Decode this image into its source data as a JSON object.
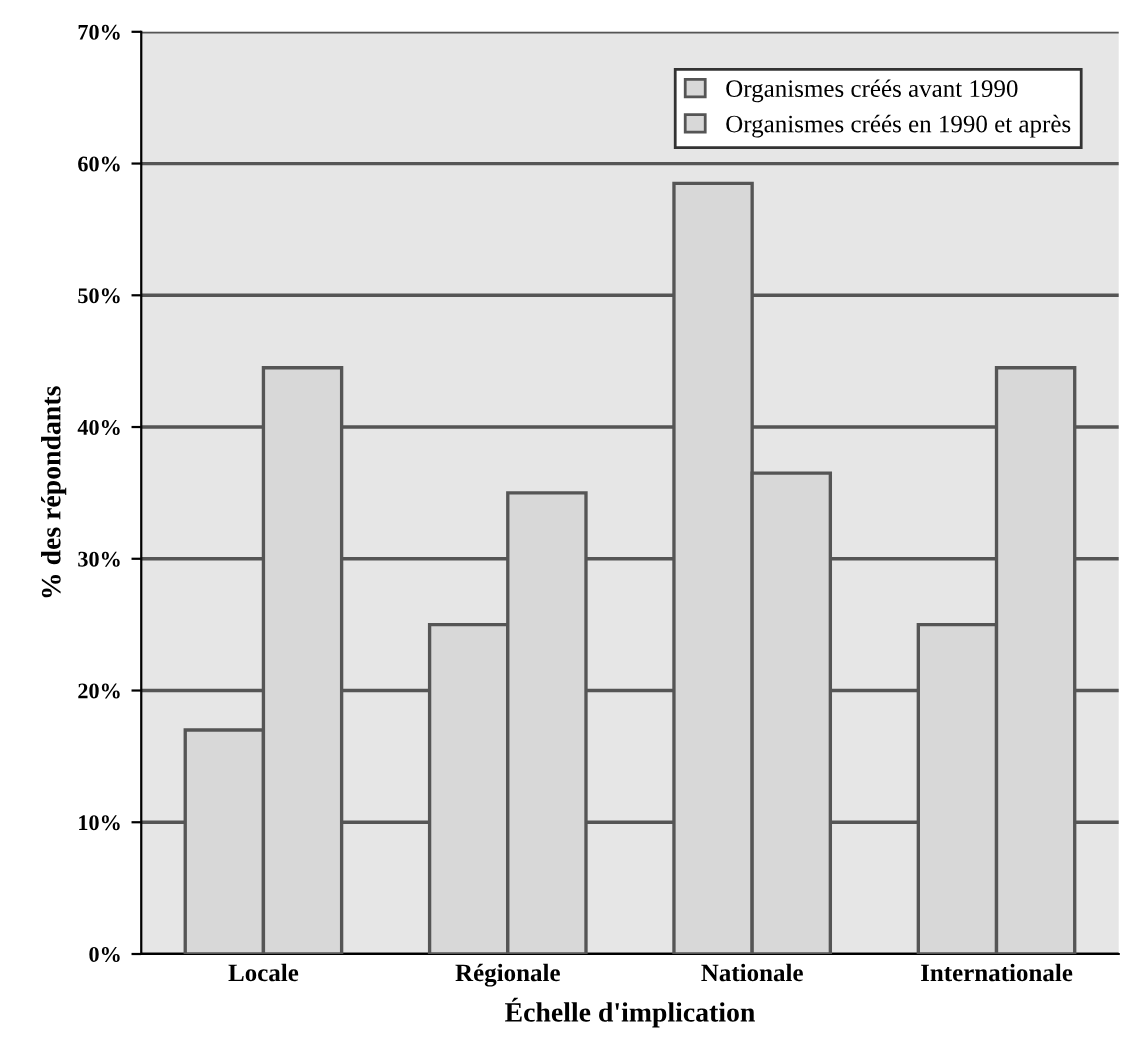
{
  "chart_data": {
    "type": "bar",
    "xlabel": "Échelle d'implication",
    "ylabel": "% des répondants",
    "categories": [
      "Locale",
      "Régionale",
      "Nationale",
      "Internationale"
    ],
    "series": [
      {
        "name": "Organismes créés avant 1990",
        "color": "#d8d8d8",
        "values": [
          17,
          25,
          58.5,
          25
        ]
      },
      {
        "name": "Organismes créés en 1990 et après",
        "color": "#d8d8d8",
        "values": [
          44.5,
          35,
          36.5,
          44.5
        ]
      }
    ],
    "ylim": [
      0,
      70
    ],
    "yticks": [
      {
        "value": 0,
        "label": "0%"
      },
      {
        "value": 10,
        "label": "10%"
      },
      {
        "value": 20,
        "label": "20%"
      },
      {
        "value": 30,
        "label": "30%"
      },
      {
        "value": 40,
        "label": "40%"
      },
      {
        "value": 50,
        "label": "50%"
      },
      {
        "value": 60,
        "label": "60%"
      },
      {
        "value": 70,
        "label": "70%"
      }
    ],
    "grid": "y",
    "legend": "top right"
  }
}
